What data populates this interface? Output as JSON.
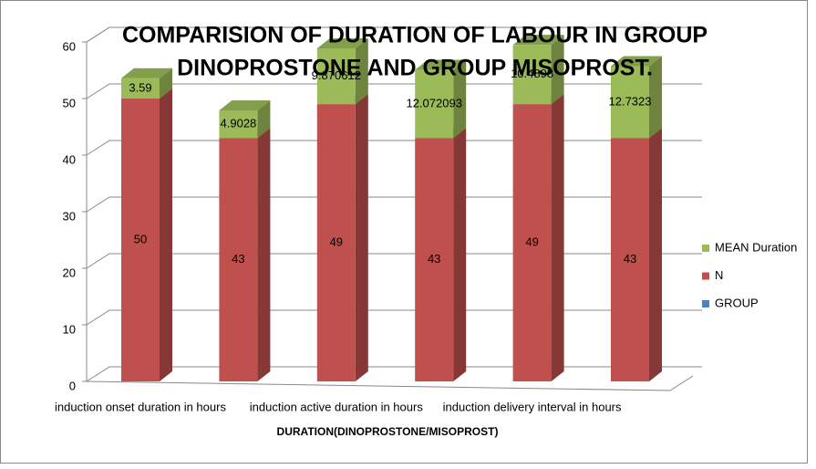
{
  "chart_data": {
    "type": "bar3d_stacked",
    "title": "COMPARISION OF DURATION OF LABOUR IN GROUP",
    "subtitle": "DINOPROSTONE AND GROUP MISOPROST.",
    "x_label": "DURATION(DINOPROSTONE/MISOPROST)",
    "categories": [
      "induction onset duration in hours",
      null,
      "induction active duration in hours",
      null,
      "induction delivery interval in hours",
      null
    ],
    "series": [
      {
        "name": "GROUP",
        "color": "#4f81bd",
        "values": [
          0,
          0,
          0,
          0,
          0,
          0
        ]
      },
      {
        "name": "N",
        "color": "#c0504d",
        "values": [
          50,
          43,
          49,
          43,
          49,
          43
        ]
      },
      {
        "name": "MEAN Duration",
        "color": "#9bbb59",
        "values": [
          3.59,
          4.9028,
          9.870612,
          12.072093,
          10.4898,
          12.7323
        ]
      }
    ],
    "ylim": [
      0,
      60
    ],
    "yticks": [
      0,
      10,
      20,
      30,
      40,
      50,
      60
    ],
    "grid": true,
    "legend": "right"
  }
}
